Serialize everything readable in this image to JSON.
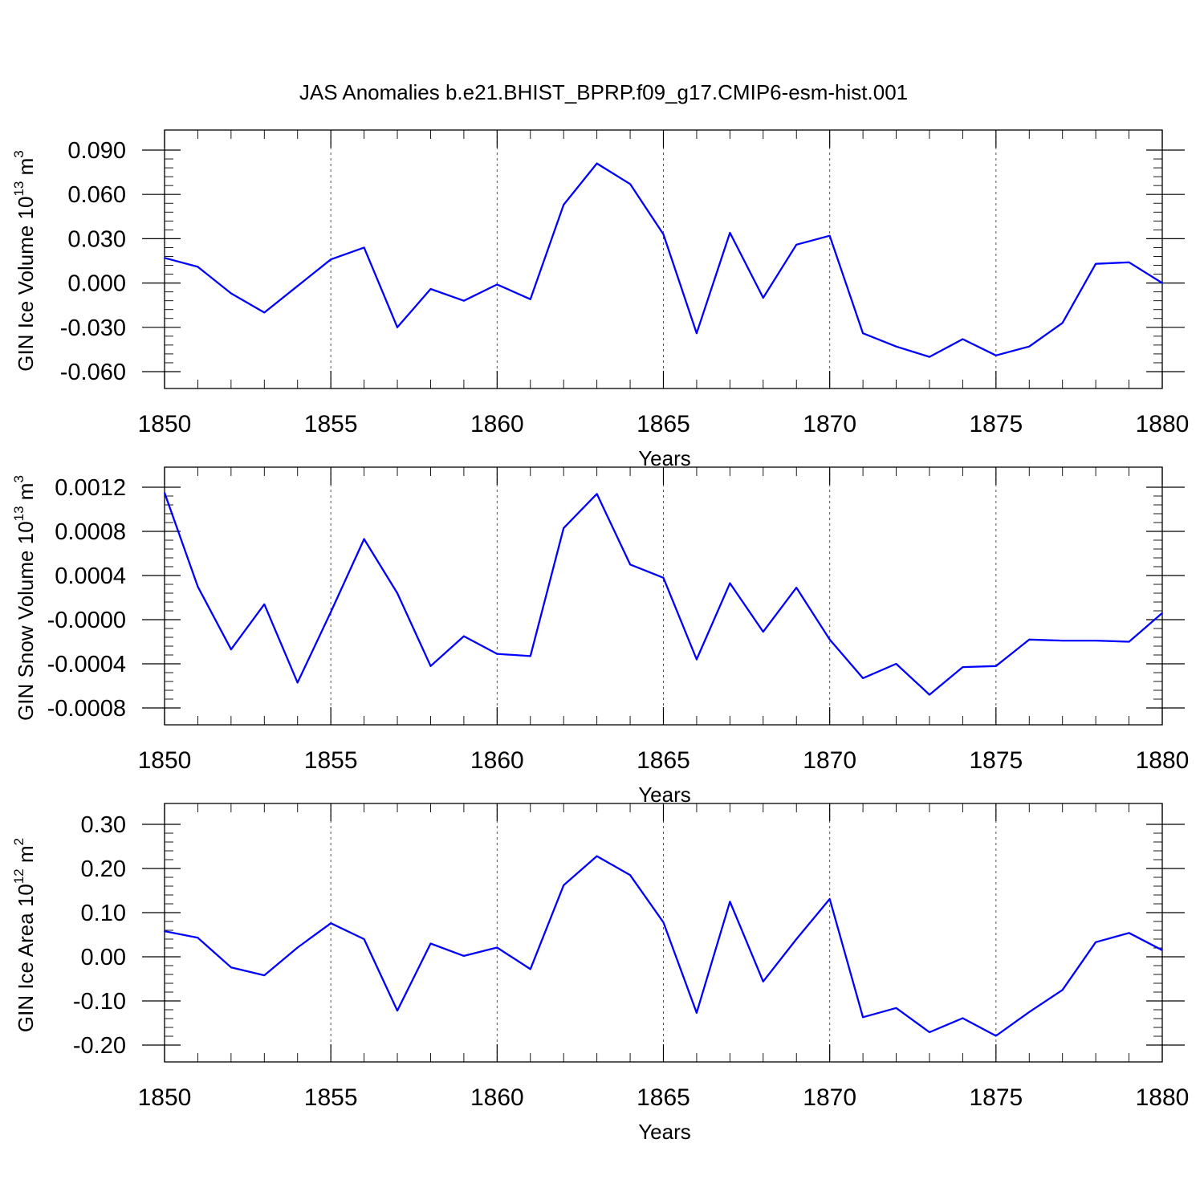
{
  "title": "JAS Anomalies b.e21.BHIST_BPRP.f09_g17.CMIP6-esm-hist.001",
  "colors": {
    "line": "#0000ff",
    "axis": "#000000",
    "grid": "#555555"
  },
  "chart_data": [
    {
      "type": "line",
      "id": "ice-volume",
      "ylabel_main": "GIN Ice Volume 10",
      "ylabel_exp": "13",
      "ylabel_unit": " m",
      "ylabel_unit_exp": "3",
      "xlabel": "Years",
      "xlim": [
        1850,
        1880
      ],
      "ylim": [
        -0.066,
        0.09
      ],
      "grid": "vertical dashed lines at major x ticks",
      "x_ticks": [
        1850,
        1855,
        1860,
        1865,
        1870,
        1875,
        1880
      ],
      "x_tick_labels": [
        "1850",
        "1855",
        "1860",
        "1865",
        "1870",
        "1875",
        "1880"
      ],
      "y_ticks": [
        0.09,
        0.06,
        0.03,
        0.0,
        -0.03,
        -0.06
      ],
      "y_tick_labels": [
        "0.090",
        "0.060",
        "0.030",
        "0.000",
        "-0.030",
        "-0.060"
      ],
      "x": [
        1850,
        1851,
        1852,
        1853,
        1854,
        1855,
        1856,
        1857,
        1858,
        1859,
        1860,
        1861,
        1862,
        1863,
        1864,
        1865,
        1866,
        1867,
        1868,
        1869,
        1870,
        1871,
        1872,
        1873,
        1874,
        1875,
        1876,
        1877,
        1878,
        1879,
        1880
      ],
      "values": [
        0.017,
        0.011,
        -0.007,
        -0.02,
        -0.002,
        0.016,
        0.024,
        -0.03,
        -0.004,
        -0.012,
        -0.001,
        -0.011,
        0.053,
        0.081,
        0.067,
        0.033,
        -0.034,
        0.034,
        -0.01,
        0.026,
        0.032,
        -0.034,
        -0.043,
        -0.05,
        -0.038,
        -0.049,
        -0.043,
        -0.027,
        0.013,
        0.014,
        0.0
      ]
    },
    {
      "type": "line",
      "id": "snow-volume",
      "ylabel_main": "GIN Snow Volume 10",
      "ylabel_exp": "13",
      "ylabel_unit": " m",
      "ylabel_unit_exp": "3",
      "xlabel": "Years",
      "xlim": [
        1850,
        1880
      ],
      "ylim": [
        -0.00088,
        0.0012
      ],
      "grid": "vertical dashed lines at major x ticks",
      "x_ticks": [
        1850,
        1855,
        1860,
        1865,
        1870,
        1875,
        1880
      ],
      "x_tick_labels": [
        "1850",
        "1855",
        "1860",
        "1865",
        "1870",
        "1875",
        "1880"
      ],
      "y_ticks": [
        0.0012,
        0.0008,
        0.0004,
        0.0,
        -0.0004,
        -0.0008
      ],
      "y_tick_labels": [
        "0.0012",
        "0.0008",
        "0.0004",
        "-0.0000",
        "-0.0004",
        "-0.0008"
      ],
      "x": [
        1850,
        1851,
        1852,
        1853,
        1854,
        1855,
        1856,
        1857,
        1858,
        1859,
        1860,
        1861,
        1862,
        1863,
        1864,
        1865,
        1866,
        1867,
        1868,
        1869,
        1870,
        1871,
        1872,
        1873,
        1874,
        1875,
        1876,
        1877,
        1878,
        1879,
        1880
      ],
      "values": [
        0.00115,
        0.0003,
        -0.00027,
        0.00014,
        -0.00057,
        7e-05,
        0.00073,
        0.00024,
        -0.00042,
        -0.00015,
        -0.00031,
        -0.00033,
        0.00083,
        0.00114,
        0.0005,
        0.00038,
        -0.00036,
        0.00033,
        -0.00011,
        0.00029,
        -0.00018,
        -0.00053,
        -0.0004,
        -0.00068,
        -0.00043,
        -0.00042,
        -0.00018,
        -0.00019,
        -0.00019,
        -0.0002,
        6e-05
      ]
    },
    {
      "type": "line",
      "id": "ice-area",
      "ylabel_main": "GIN Ice Area 10",
      "ylabel_exp": "12",
      "ylabel_unit": " m",
      "ylabel_unit_exp": "2",
      "xlabel": "Years",
      "xlim": [
        1850,
        1880
      ],
      "ylim": [
        -0.2,
        0.3
      ],
      "grid": "vertical dashed lines at major x ticks",
      "x_ticks": [
        1850,
        1855,
        1860,
        1865,
        1870,
        1875,
        1880
      ],
      "x_tick_labels": [
        "1850",
        "1855",
        "1860",
        "1865",
        "1870",
        "1875",
        "1880"
      ],
      "y_ticks": [
        0.3,
        0.2,
        0.1,
        0.0,
        -0.1,
        -0.2
      ],
      "y_tick_labels": [
        "0.30",
        "0.20",
        "0.10",
        "0.00",
        "-0.10",
        "-0.20"
      ],
      "x": [
        1850,
        1851,
        1852,
        1853,
        1854,
        1855,
        1856,
        1857,
        1858,
        1859,
        1860,
        1861,
        1862,
        1863,
        1864,
        1865,
        1866,
        1867,
        1868,
        1869,
        1870,
        1871,
        1872,
        1873,
        1874,
        1875,
        1876,
        1877,
        1878,
        1879,
        1880
      ],
      "values": [
        0.058,
        0.043,
        -0.024,
        -0.042,
        0.021,
        0.076,
        0.04,
        -0.122,
        0.03,
        0.002,
        0.021,
        -0.028,
        0.162,
        0.228,
        0.185,
        0.078,
        -0.127,
        0.125,
        -0.056,
        0.04,
        0.131,
        -0.137,
        -0.116,
        -0.171,
        -0.139,
        -0.179,
        -0.125,
        -0.075,
        0.033,
        0.054,
        0.015
      ]
    }
  ]
}
